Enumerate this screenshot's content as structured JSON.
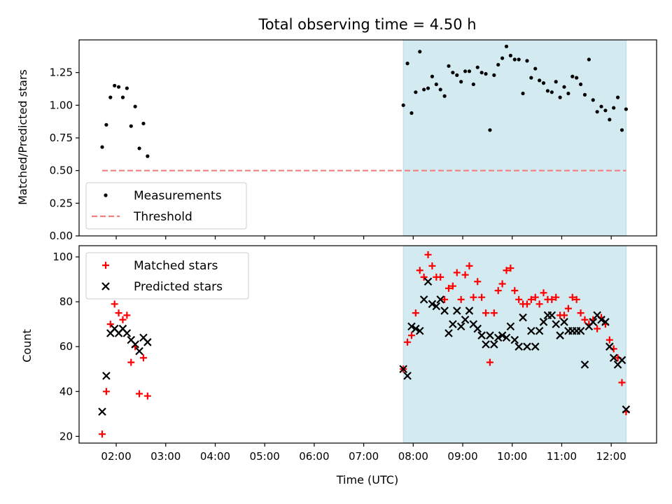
{
  "chart_data": [
    {
      "type": "scatter",
      "title": "Total observing time = 4.50 h",
      "ylabel": "Matched/Predicted stars",
      "xlabel": "",
      "x_axis": "time (UTC)",
      "xlim": [
        "01:15",
        "12:55"
      ],
      "ylim": [
        0,
        1.5
      ],
      "yticks": [
        "0.00",
        "0.25",
        "0.50",
        "0.75",
        "1.00",
        "1.25"
      ],
      "ytick_values": [
        0,
        0.25,
        0.5,
        0.75,
        1.0,
        1.25
      ],
      "xticks": [
        "02:00",
        "03:00",
        "04:00",
        "05:00",
        "06:00",
        "07:00",
        "08:00",
        "09:00",
        "10:00",
        "11:00",
        "12:00"
      ],
      "show_xtick_labels": false,
      "highlight_span": {
        "start": "07:48",
        "end": "12:18",
        "color": "#d3eaf1"
      },
      "legend_position": "lower-left",
      "series": [
        {
          "name": "Measurements",
          "marker": "dot",
          "color": "#000000",
          "points": [
            [
              "01:43",
              0.68
            ],
            [
              "01:48",
              0.85
            ],
            [
              "01:53",
              1.06
            ],
            [
              "01:58",
              1.15
            ],
            [
              "02:03",
              1.14
            ],
            [
              "02:08",
              1.06
            ],
            [
              "02:13",
              1.13
            ],
            [
              "02:18",
              0.84
            ],
            [
              "02:23",
              0.99
            ],
            [
              "02:28",
              0.67
            ],
            [
              "02:33",
              0.86
            ],
            [
              "02:38",
              0.61
            ],
            [
              "07:48",
              1.0
            ],
            [
              "07:53",
              1.32
            ],
            [
              "07:58",
              0.94
            ],
            [
              "08:03",
              1.1
            ],
            [
              "08:08",
              1.41
            ],
            [
              "08:13",
              1.12
            ],
            [
              "08:18",
              1.13
            ],
            [
              "08:23",
              1.22
            ],
            [
              "08:28",
              1.16
            ],
            [
              "08:33",
              1.12
            ],
            [
              "08:38",
              1.07
            ],
            [
              "08:43",
              1.3
            ],
            [
              "08:48",
              1.25
            ],
            [
              "08:53",
              1.23
            ],
            [
              "08:58",
              1.18
            ],
            [
              "09:03",
              1.26
            ],
            [
              "09:08",
              1.26
            ],
            [
              "09:13",
              1.16
            ],
            [
              "09:18",
              1.29
            ],
            [
              "09:23",
              1.25
            ],
            [
              "09:28",
              1.24
            ],
            [
              "09:33",
              0.81
            ],
            [
              "09:38",
              1.23
            ],
            [
              "09:43",
              1.31
            ],
            [
              "09:48",
              1.36
            ],
            [
              "09:53",
              1.45
            ],
            [
              "09:58",
              1.38
            ],
            [
              "10:03",
              1.35
            ],
            [
              "10:08",
              1.35
            ],
            [
              "10:13",
              1.09
            ],
            [
              "10:18",
              1.34
            ],
            [
              "10:23",
              1.21
            ],
            [
              "10:28",
              1.28
            ],
            [
              "10:33",
              1.19
            ],
            [
              "10:38",
              1.17
            ],
            [
              "10:43",
              1.11
            ],
            [
              "10:48",
              1.1
            ],
            [
              "10:53",
              1.18
            ],
            [
              "10:58",
              1.06
            ],
            [
              "11:03",
              1.14
            ],
            [
              "11:08",
              1.09
            ],
            [
              "11:13",
              1.22
            ],
            [
              "11:18",
              1.21
            ],
            [
              "11:23",
              1.16
            ],
            [
              "11:28",
              1.08
            ],
            [
              "11:33",
              1.35
            ],
            [
              "11:38",
              1.04
            ],
            [
              "11:43",
              0.95
            ],
            [
              "11:48",
              0.99
            ],
            [
              "11:53",
              0.96
            ],
            [
              "11:58",
              0.89
            ],
            [
              "12:03",
              0.98
            ],
            [
              "12:08",
              1.06
            ],
            [
              "12:13",
              0.81
            ],
            [
              "12:18",
              0.97
            ]
          ]
        },
        {
          "name": "Threshold",
          "marker": "dashed-line",
          "color": "#f08080",
          "points": [
            [
              "01:43",
              0.5
            ],
            [
              "12:18",
              0.5
            ]
          ]
        }
      ]
    },
    {
      "type": "scatter",
      "title": "",
      "ylabel": "Count",
      "xlabel": "Time (UTC)",
      "x_axis": "time (UTC)",
      "xlim": [
        "01:15",
        "12:55"
      ],
      "ylim": [
        17,
        105
      ],
      "yticks": [
        "20",
        "40",
        "60",
        "80",
        "100"
      ],
      "ytick_values": [
        20,
        40,
        60,
        80,
        100
      ],
      "xticks": [
        "02:00",
        "03:00",
        "04:00",
        "05:00",
        "06:00",
        "07:00",
        "08:00",
        "09:00",
        "10:00",
        "11:00",
        "12:00"
      ],
      "show_xtick_labels": true,
      "highlight_span": {
        "start": "07:48",
        "end": "12:18",
        "color": "#d3eaf1"
      },
      "legend_position": "upper-left",
      "series": [
        {
          "name": "Matched stars",
          "marker": "plus",
          "color": "#ff0000",
          "points": [
            [
              "01:43",
              21
            ],
            [
              "01:48",
              40
            ],
            [
              "01:53",
              70
            ],
            [
              "01:58",
              79
            ],
            [
              "02:03",
              75
            ],
            [
              "02:08",
              72
            ],
            [
              "02:13",
              74
            ],
            [
              "02:18",
              53
            ],
            [
              "02:23",
              60
            ],
            [
              "02:28",
              39
            ],
            [
              "02:33",
              55
            ],
            [
              "02:38",
              38
            ],
            [
              "07:48",
              50
            ],
            [
              "07:53",
              62
            ],
            [
              "07:58",
              65
            ],
            [
              "08:03",
              75
            ],
            [
              "08:08",
              94
            ],
            [
              "08:13",
              91
            ],
            [
              "08:18",
              101
            ],
            [
              "08:23",
              96
            ],
            [
              "08:28",
              91
            ],
            [
              "08:33",
              91
            ],
            [
              "08:38",
              81
            ],
            [
              "08:43",
              86
            ],
            [
              "08:48",
              87
            ],
            [
              "08:53",
              93
            ],
            [
              "08:58",
              81
            ],
            [
              "09:03",
              92
            ],
            [
              "09:08",
              96
            ],
            [
              "09:13",
              82
            ],
            [
              "09:18",
              89
            ],
            [
              "09:23",
              82
            ],
            [
              "09:28",
              75
            ],
            [
              "09:33",
              53
            ],
            [
              "09:38",
              75
            ],
            [
              "09:43",
              85
            ],
            [
              "09:48",
              88
            ],
            [
              "09:53",
              94
            ],
            [
              "09:58",
              95
            ],
            [
              "10:03",
              85
            ],
            [
              "10:08",
              81
            ],
            [
              "10:13",
              79
            ],
            [
              "10:18",
              79
            ],
            [
              "10:23",
              81
            ],
            [
              "10:28",
              82
            ],
            [
              "10:33",
              79
            ],
            [
              "10:38",
              84
            ],
            [
              "10:43",
              81
            ],
            [
              "10:48",
              81
            ],
            [
              "10:53",
              82
            ],
            [
              "10:58",
              74
            ],
            [
              "11:03",
              74
            ],
            [
              "11:08",
              77
            ],
            [
              "11:13",
              82
            ],
            [
              "11:18",
              81
            ],
            [
              "11:23",
              75
            ],
            [
              "11:28",
              72
            ],
            [
              "11:33",
              70
            ],
            [
              "11:38",
              72
            ],
            [
              "11:43",
              68
            ],
            [
              "11:48",
              73
            ],
            [
              "11:53",
              70
            ],
            [
              "11:58",
              63
            ],
            [
              "12:03",
              59
            ],
            [
              "12:08",
              55
            ],
            [
              "12:13",
              44
            ],
            [
              "12:18",
              31
            ]
          ]
        },
        {
          "name": "Predicted stars",
          "marker": "x",
          "color": "#000000",
          "points": [
            [
              "01:43",
              31
            ],
            [
              "01:48",
              47
            ],
            [
              "01:53",
              66
            ],
            [
              "01:58",
              68
            ],
            [
              "02:03",
              66
            ],
            [
              "02:08",
              68
            ],
            [
              "02:13",
              66
            ],
            [
              "02:18",
              63
            ],
            [
              "02:23",
              61
            ],
            [
              "02:28",
              58
            ],
            [
              "02:33",
              64
            ],
            [
              "02:38",
              62
            ],
            [
              "07:48",
              50
            ],
            [
              "07:53",
              47
            ],
            [
              "07:58",
              69
            ],
            [
              "08:03",
              68
            ],
            [
              "08:08",
              67
            ],
            [
              "08:13",
              81
            ],
            [
              "08:18",
              89
            ],
            [
              "08:23",
              79
            ],
            [
              "08:28",
              78
            ],
            [
              "08:33",
              81
            ],
            [
              "08:38",
              76
            ],
            [
              "08:43",
              66
            ],
            [
              "08:48",
              70
            ],
            [
              "08:53",
              76
            ],
            [
              "08:58",
              69
            ],
            [
              "09:03",
              72
            ],
            [
              "09:08",
              76
            ],
            [
              "09:13",
              70
            ],
            [
              "09:18",
              68
            ],
            [
              "09:23",
              65
            ],
            [
              "09:28",
              61
            ],
            [
              "09:33",
              65
            ],
            [
              "09:38",
              61
            ],
            [
              "09:43",
              64
            ],
            [
              "09:48",
              65
            ],
            [
              "09:53",
              64
            ],
            [
              "09:58",
              69
            ],
            [
              "10:03",
              63
            ],
            [
              "10:08",
              60
            ],
            [
              "10:13",
              73
            ],
            [
              "10:18",
              60
            ],
            [
              "10:23",
              67
            ],
            [
              "10:28",
              60
            ],
            [
              "10:33",
              67
            ],
            [
              "10:38",
              71
            ],
            [
              "10:43",
              74
            ],
            [
              "10:48",
              74
            ],
            [
              "10:53",
              70
            ],
            [
              "10:58",
              65
            ],
            [
              "11:03",
              71
            ],
            [
              "11:08",
              67
            ],
            [
              "11:13",
              67
            ],
            [
              "11:18",
              67
            ],
            [
              "11:23",
              67
            ],
            [
              "11:28",
              52
            ],
            [
              "11:33",
              69
            ],
            [
              "11:38",
              71
            ],
            [
              "11:43",
              74
            ],
            [
              "11:48",
              72
            ],
            [
              "11:53",
              71
            ],
            [
              "11:58",
              60
            ],
            [
              "12:03",
              55
            ],
            [
              "12:08",
              52
            ],
            [
              "12:13",
              54
            ],
            [
              "12:18",
              32
            ]
          ]
        }
      ]
    }
  ]
}
